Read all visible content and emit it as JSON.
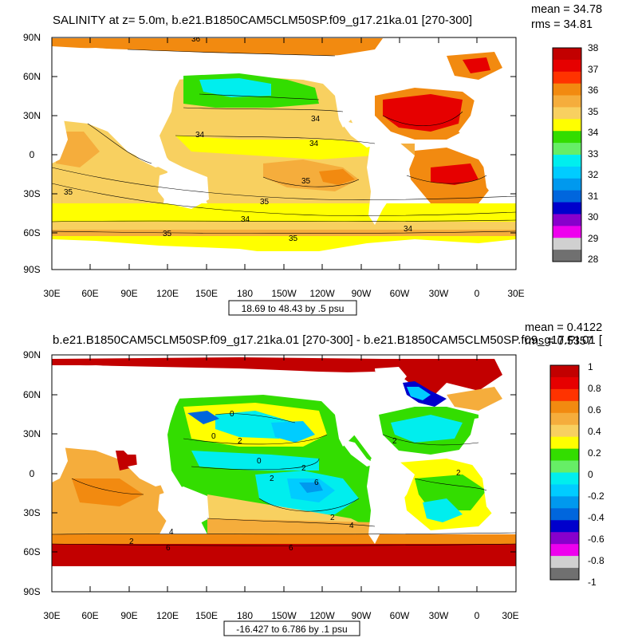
{
  "panels": {
    "top": {
      "title": "SALINITY at z=   5.0m, b.e21.B1850CAM5CLM50SP.f09_g17.21ka.01 [270-300]",
      "mean": "mean = 34.78",
      "rms": "rms = 34.81",
      "lat_ticks": [
        "90N",
        "60N",
        "30N",
        "0",
        "30S",
        "60S",
        "90S"
      ],
      "lon_ticks": [
        "30E",
        "60E",
        "90E",
        "120E",
        "150E",
        "180",
        "150W",
        "120W",
        "90W",
        "60W",
        "30W",
        "0",
        "30E"
      ],
      "colorbar": {
        "labels": [
          "38",
          "37",
          "36",
          "35",
          "34",
          "33",
          "32",
          "31",
          "30",
          "29",
          "28"
        ],
        "colors": [
          "#c20000",
          "#e60000",
          "#ff3300",
          "#f28a10",
          "#f5ad3c",
          "#f8d060",
          "#ffff00",
          "#33dd00",
          "#66ee66",
          "#00eeee",
          "#00ccff",
          "#0099ee",
          "#0066dd",
          "#0000cc",
          "#8800cc",
          "#ee00ee",
          "#d0d0d0",
          "#707070"
        ]
      },
      "contour_labels": [
        "36",
        "34",
        "34",
        "34",
        "35",
        "35",
        "35",
        "34",
        "35",
        "35",
        "34"
      ],
      "range_note": "18.69 to 48.43 by .5 psu"
    },
    "bottom": {
      "title": "b.e21.B1850CAM5CLM50SP.f09_g17.21ka.01 [270-300] - b.e21.B1850CAM5CLM50SP.f09_g17.PI.01 [",
      "mean": "mean = 0.4122",
      "rms": "rms = 0.5357",
      "lat_ticks": [
        "90N",
        "60N",
        "30N",
        "0",
        "30S",
        "60S",
        "90S"
      ],
      "lon_ticks": [
        "30E",
        "60E",
        "90E",
        "120E",
        "150E",
        "180",
        "150W",
        "120W",
        "90W",
        "60W",
        "30W",
        "0",
        "30E"
      ],
      "colorbar": {
        "labels": [
          "1",
          "0.8",
          "0.6",
          "0.4",
          "0.2",
          "0",
          "-0.2",
          "-0.4",
          "-0.6",
          "-0.8",
          "-1"
        ],
        "colors": [
          "#c20000",
          "#e60000",
          "#ff3300",
          "#f28a10",
          "#f5ad3c",
          "#f8d060",
          "#ffff00",
          "#33dd00",
          "#66ee66",
          "#00eeee",
          "#00ccff",
          "#0099ee",
          "#0066dd",
          "#0000cc",
          "#8800cc",
          "#ee00ee",
          "#d0d0d0",
          "#707070"
        ]
      },
      "contour_labels": [
        "0",
        "0",
        "2",
        "0",
        "2",
        "2",
        "6",
        "2",
        "4",
        "4",
        "2",
        "6",
        "6",
        "2",
        "2"
      ],
      "range_note": "-16.427 to 6.786 by .1 psu"
    }
  },
  "map_colors": {
    "land": "#ffffff",
    "top_ocean_base": "#f8d060",
    "bottom_ocean_base": "#f5ad3c"
  }
}
